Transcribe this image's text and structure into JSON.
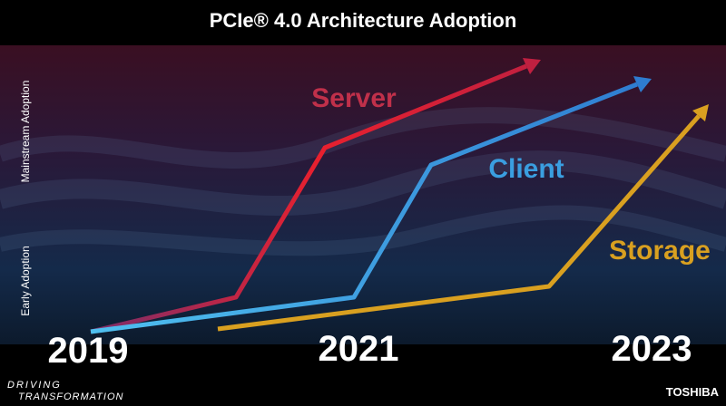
{
  "header": {
    "title": "PCIe® 4.0 Architecture Adoption"
  },
  "y_axis": {
    "labels": [
      "Early Adoption",
      "Mainstream Adoption"
    ]
  },
  "timeline": {
    "years": [
      "2019",
      "2021",
      "2023"
    ]
  },
  "curves": [
    {
      "label": "Server"
    },
    {
      "label": "Client"
    },
    {
      "label": "Storage"
    }
  ],
  "footer": {
    "tagline": [
      "DRIVING",
      "TRANSFORMATION"
    ],
    "brand": "TOSHIBA"
  }
}
